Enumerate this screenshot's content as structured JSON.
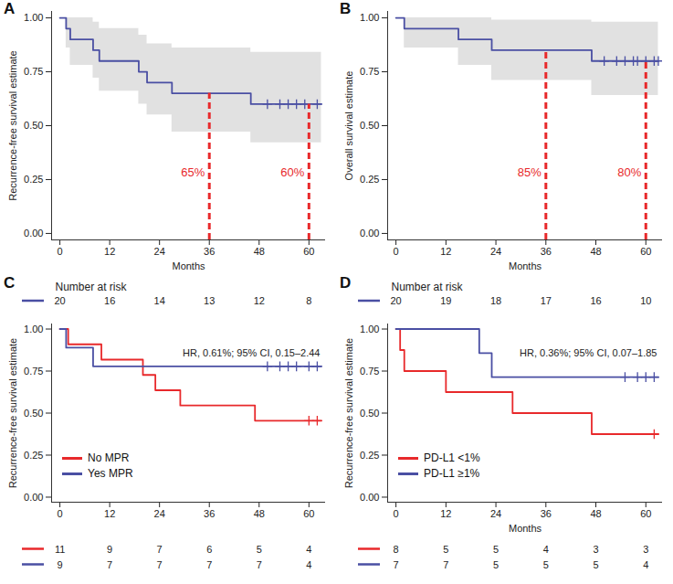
{
  "chart_data": [
    {
      "title": "A",
      "type": "survival",
      "x_label": "Months",
      "y_label": "Recurrence-free survival estimate",
      "xlim": [
        -2,
        64
      ],
      "xticks": [
        0,
        12,
        24,
        36,
        48,
        60
      ],
      "ylim": [
        -0.03,
        1.03
      ],
      "yticks": [
        {
          "value": 0,
          "label": "0.00"
        },
        {
          "value": 0.25,
          "label": "0.25"
        },
        {
          "value": 0.5,
          "label": "0.50"
        },
        {
          "value": 0.75,
          "label": "0.75"
        },
        {
          "value": 1,
          "label": "1.00"
        }
      ],
      "series": [
        {
          "color": "#4a4fa3",
          "x": [
            0,
            1.5,
            2.5,
            8,
            9.5,
            19,
            21,
            27,
            46,
            63
          ],
          "values": [
            1,
            0.95,
            0.9,
            0.85,
            0.8,
            0.75,
            0.7,
            0.65,
            0.6,
            0.6
          ],
          "ci_lower": [
            1,
            0.86,
            0.78,
            0.72,
            0.66,
            0.6,
            0.55,
            0.47,
            0.42,
            0.42
          ],
          "ci_upper": [
            1,
            1,
            1,
            0.98,
            0.95,
            0.92,
            0.88,
            0.86,
            0.84,
            0.84
          ],
          "censor_x": [
            50,
            53,
            55,
            57,
            59,
            62
          ]
        }
      ],
      "annotations": [
        {
          "x": 36,
          "y": 0.65,
          "label": "65%",
          "color": "#e8292b"
        },
        {
          "x": 60,
          "y": 0.6,
          "label": "60%",
          "color": "#e8292b"
        }
      ]
    },
    {
      "title": "B",
      "type": "survival",
      "x_label": "Months",
      "y_label": "Overall survival estimate",
      "xlim": [
        -2,
        64
      ],
      "xticks": [
        0,
        12,
        24,
        36,
        48,
        60
      ],
      "ylim": [
        -0.03,
        1.03
      ],
      "yticks": [
        {
          "value": 0,
          "label": "0.00"
        },
        {
          "value": 0.25,
          "label": "0.25"
        },
        {
          "value": 0.5,
          "label": "0.50"
        },
        {
          "value": 0.75,
          "label": "0.75"
        },
        {
          "value": 1,
          "label": "1.00"
        }
      ],
      "series": [
        {
          "color": "#4a4fa3",
          "x": [
            0,
            2,
            15,
            23,
            47,
            63
          ],
          "values": [
            1,
            0.95,
            0.9,
            0.85,
            0.8,
            0.8
          ],
          "ci_lower": [
            1,
            0.86,
            0.78,
            0.71,
            0.64,
            0.64
          ],
          "ci_upper": [
            1,
            1,
            1,
            0.99,
            0.98,
            0.98
          ],
          "censor_x": [
            50,
            53,
            55,
            57,
            58,
            60,
            62,
            63
          ]
        }
      ],
      "annotations": [
        {
          "x": 36,
          "y": 0.85,
          "label": "85%",
          "color": "#e8292b"
        },
        {
          "x": 60,
          "y": 0.8,
          "label": "80%",
          "color": "#e8292b"
        }
      ]
    },
    {
      "title": "C",
      "type": "survival",
      "y_label": "Recurrence-free survival estimate",
      "xlim": [
        -2,
        64
      ],
      "xticks": [
        0,
        12,
        24,
        36,
        48,
        60
      ],
      "ylim": [
        -0.03,
        1.03
      ],
      "yticks": [
        {
          "value": 0,
          "label": "0.00"
        },
        {
          "value": 0.25,
          "label": "0.25"
        },
        {
          "value": 0.5,
          "label": "0.50"
        },
        {
          "value": 0.75,
          "label": "0.75"
        },
        {
          "value": 1,
          "label": "1.00"
        }
      ],
      "annotation": "HR, 0.61%; 95% CI, 0.15–2.44",
      "legend": "bottom-left",
      "series": [
        {
          "name": "No MPR",
          "color": "#e8292b",
          "x": [
            0,
            2,
            10,
            20,
            23,
            29,
            47,
            63
          ],
          "values": [
            1,
            0.909,
            0.818,
            0.727,
            0.636,
            0.545,
            0.455,
            0.455
          ],
          "censor_x": [
            60,
            62
          ]
        },
        {
          "name": "Yes MPR",
          "color": "#4a4fa3",
          "x": [
            0,
            1.5,
            8,
            63
          ],
          "values": [
            1,
            0.889,
            0.778,
            0.778
          ],
          "censor_x": [
            50,
            53,
            55,
            57,
            60,
            62
          ]
        }
      ],
      "risk_table_above": {
        "title": "Number at risk",
        "x": [
          0,
          12,
          24,
          36,
          48,
          60
        ],
        "rows": [
          {
            "color": "#4a4fa3",
            "values": [
              20,
              16,
              14,
              13,
              12,
              8
            ]
          }
        ]
      },
      "risk_table_below": {
        "x": [
          0,
          12,
          24,
          36,
          48,
          60
        ],
        "rows": [
          {
            "color": "#e8292b",
            "values": [
              11,
              9,
              7,
              6,
              5,
              4
            ]
          },
          {
            "color": "#4a4fa3",
            "values": [
              9,
              7,
              7,
              7,
              7,
              4
            ]
          }
        ]
      }
    },
    {
      "title": "D",
      "type": "survival",
      "x_label": "Months",
      "y_label": "Recurrence-free survival estimate",
      "xlim": [
        -2,
        64
      ],
      "xticks": [
        0,
        12,
        24,
        36,
        48,
        60
      ],
      "ylim": [
        -0.03,
        1.03
      ],
      "yticks": [
        {
          "value": 0,
          "label": "0.00"
        },
        {
          "value": 0.25,
          "label": "0.25"
        },
        {
          "value": 0.5,
          "label": "0.50"
        },
        {
          "value": 0.75,
          "label": "0.75"
        },
        {
          "value": 1,
          "label": "1.00"
        }
      ],
      "annotation": "HR, 0.36%; 95% CI, 0.07–1.85",
      "legend": "bottom-left",
      "series": [
        {
          "name": "PD-L1 <1%",
          "color": "#e8292b",
          "x": [
            0,
            1,
            2,
            12,
            28,
            47,
            63
          ],
          "values": [
            1,
            0.875,
            0.75,
            0.625,
            0.5,
            0.375,
            0.375
          ],
          "censor_x": [
            62
          ]
        },
        {
          "name": "PD-L1 ≥1%",
          "color": "#4a4fa3",
          "x": [
            0,
            20,
            23,
            63
          ],
          "values": [
            1,
            0.857,
            0.714,
            0.714
          ],
          "censor_x": [
            55,
            58,
            60,
            62
          ]
        }
      ],
      "risk_table_above": {
        "title": "Number at risk",
        "x": [
          0,
          12,
          24,
          36,
          48,
          60
        ],
        "rows": [
          {
            "color": "#4a4fa3",
            "values": [
              20,
              19,
              18,
              17,
              16,
              10
            ]
          }
        ]
      },
      "risk_table_below": {
        "x": [
          0,
          12,
          24,
          36,
          48,
          60
        ],
        "rows": [
          {
            "color": "#e8292b",
            "values": [
              8,
              5,
              5,
              4,
              3,
              3
            ]
          },
          {
            "color": "#4a4fa3",
            "values": [
              7,
              7,
              5,
              5,
              5,
              4
            ]
          }
        ]
      }
    }
  ]
}
